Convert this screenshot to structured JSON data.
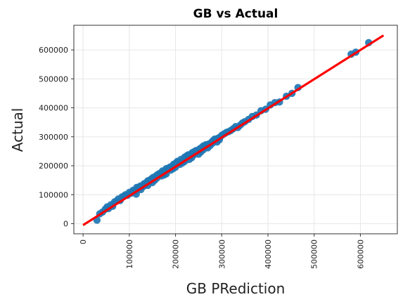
{
  "chart_data": {
    "type": "scatter",
    "title": "GB vs Actual",
    "xlabel": "GB PRediction",
    "ylabel": "Actual",
    "xlim": [
      -20000,
      680000
    ],
    "ylim": [
      -35000,
      685000
    ],
    "xticks": [
      0,
      100000,
      200000,
      300000,
      400000,
      500000,
      600000
    ],
    "xtick_labels": [
      "0",
      "100000",
      "200000",
      "300000",
      "400000",
      "500000",
      "600000"
    ],
    "yticks": [
      0,
      100000,
      200000,
      300000,
      400000,
      500000,
      600000
    ],
    "ytick_labels": [
      "0",
      "100000",
      "200000",
      "300000",
      "400000",
      "500000",
      "600000"
    ],
    "grid": true,
    "series": [
      {
        "type": "scatter",
        "color": "#1f77b4",
        "x": [
          30000,
          36000,
          42000,
          48000,
          52000,
          55000,
          60000,
          64000,
          68000,
          72000,
          76000,
          80000,
          84000,
          88000,
          92000,
          96000,
          100000,
          104000,
          108000,
          112000,
          116000,
          120000,
          124000,
          128000,
          132000,
          136000,
          140000,
          144000,
          148000,
          152000,
          156000,
          160000,
          164000,
          168000,
          172000,
          176000,
          180000,
          184000,
          188000,
          192000,
          196000,
          200000,
          204000,
          208000,
          212000,
          216000,
          220000,
          224000,
          228000,
          232000,
          236000,
          240000,
          244000,
          248000,
          252000,
          256000,
          260000,
          264000,
          268000,
          272000,
          276000,
          280000,
          284000,
          288000,
          292000,
          296000,
          300000,
          305000,
          310000,
          315000,
          320000,
          325000,
          330000,
          335000,
          340000,
          345000,
          350000,
          358000,
          366000,
          375000,
          385000,
          395000,
          405000,
          415000,
          425000,
          440000,
          452000,
          465000,
          580000,
          590000,
          618000,
          115000,
          125000,
          135000,
          145000,
          155000,
          165000,
          175000,
          185000,
          195000,
          205000,
          215000,
          225000,
          235000,
          245000,
          255000,
          265000,
          275000,
          285000,
          295000,
          110000,
          130000,
          150000,
          170000,
          190000,
          210000,
          230000,
          250000,
          270000,
          290000,
          120000,
          140000,
          160000,
          180000,
          200000,
          220000,
          240000,
          260000,
          280000
        ],
        "y": [
          12000,
          34000,
          40000,
          50000,
          58000,
          52000,
          65000,
          60000,
          75000,
          78000,
          85000,
          80000,
          92000,
          95000,
          100000,
          98000,
          108000,
          105000,
          115000,
          112000,
          125000,
          122000,
          130000,
          128000,
          138000,
          140000,
          148000,
          150000,
          155000,
          160000,
          162000,
          168000,
          172000,
          175000,
          182000,
          180000,
          190000,
          188000,
          195000,
          198000,
          205000,
          208000,
          215000,
          210000,
          222000,
          218000,
          230000,
          232000,
          238000,
          235000,
          245000,
          248000,
          252000,
          250000,
          258000,
          262000,
          268000,
          265000,
          272000,
          275000,
          278000,
          285000,
          290000,
          288000,
          295000,
          298000,
          305000,
          310000,
          315000,
          318000,
          322000,
          328000,
          335000,
          332000,
          340000,
          348000,
          352000,
          360000,
          370000,
          375000,
          390000,
          395000,
          410000,
          418000,
          420000,
          440000,
          450000,
          470000,
          585000,
          592000,
          625000,
          102000,
          118000,
          138000,
          145000,
          150000,
          170000,
          168000,
          192000,
          190000,
          212000,
          210000,
          235000,
          228000,
          252000,
          248000,
          272000,
          270000,
          292000,
          290000,
          112000,
          128000,
          142000,
          165000,
          185000,
          205000,
          222000,
          240000,
          262000,
          282000,
          125000,
          132000,
          158000,
          172000,
          195000,
          215000,
          238000,
          255000,
          278000
        ]
      },
      {
        "type": "line",
        "color": "#ff0000",
        "x": [
          0,
          650000
        ],
        "y": [
          -5000,
          650000
        ]
      }
    ]
  }
}
